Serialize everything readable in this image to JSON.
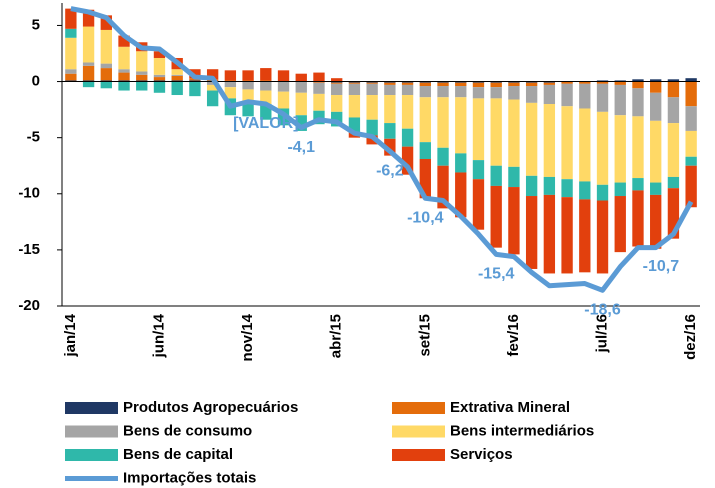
{
  "chart_data": {
    "type": "bar",
    "stacked": true,
    "categories": [
      "jan/14",
      null,
      null,
      null,
      null,
      "jun/14",
      null,
      null,
      null,
      null,
      "nov/14",
      null,
      null,
      null,
      null,
      "abr/15",
      null,
      null,
      null,
      null,
      "set/15",
      null,
      null,
      null,
      null,
      "fev/16",
      null,
      null,
      null,
      null,
      "jul/16",
      null,
      null,
      null,
      null,
      "dez/16"
    ],
    "series": [
      {
        "name": "Produtos Agropecuários",
        "color": "#1f3864",
        "values": [
          0.1,
          0.1,
          0.1,
          0.1,
          0.1,
          0.1,
          0.1,
          0.1,
          0.0,
          0.0,
          0.0,
          0.0,
          0.0,
          0.0,
          0.0,
          -0.1,
          -0.1,
          -0.1,
          -0.1,
          -0.1,
          -0.1,
          -0.1,
          -0.1,
          -0.1,
          -0.1,
          -0.1,
          -0.1,
          -0.1,
          0.0,
          0.0,
          0.1,
          0.1,
          0.2,
          0.2,
          0.2,
          0.3
        ]
      },
      {
        "name": "Extrativa Mineral",
        "color": "#e46c0a",
        "values": [
          0.6,
          1.3,
          1.1,
          0.7,
          0.5,
          0.3,
          0.4,
          0.2,
          0.2,
          0.1,
          0.1,
          0.1,
          0.0,
          0.0,
          -0.1,
          -0.1,
          -0.1,
          -0.1,
          -0.2,
          -0.2,
          -0.3,
          -0.3,
          -0.3,
          -0.4,
          -0.4,
          -0.3,
          -0.3,
          -0.2,
          -0.2,
          -0.2,
          -0.2,
          -0.3,
          -0.6,
          -1.0,
          -1.4,
          -2.2
        ]
      },
      {
        "name": "Bens de consumo",
        "color": "#a5a5a5",
        "values": [
          0.4,
          0.3,
          0.4,
          0.3,
          0.3,
          0.2,
          0.1,
          0.0,
          -0.3,
          -0.5,
          -0.7,
          -0.8,
          -0.9,
          -1.0,
          -1.0,
          -1.0,
          -1.0,
          -1.0,
          -0.9,
          -0.9,
          -1.0,
          -1.0,
          -1.0,
          -1.0,
          -1.0,
          -1.2,
          -1.5,
          -1.7,
          -2.0,
          -2.2,
          -2.5,
          -2.7,
          -2.5,
          -2.5,
          -2.3,
          -2.2
        ]
      },
      {
        "name": "Bens intermediários",
        "color": "#ffd966",
        "values": [
          2.8,
          3.2,
          3.0,
          2.0,
          1.8,
          1.5,
          0.5,
          0.0,
          -0.5,
          -1.0,
          -1.0,
          -1.2,
          -1.5,
          -2.0,
          -1.5,
          -1.5,
          -2.0,
          -2.2,
          -2.5,
          -3.0,
          -4.0,
          -4.5,
          -5.0,
          -5.5,
          -6.0,
          -6.0,
          -6.5,
          -6.5,
          -6.5,
          -6.5,
          -6.5,
          -6.0,
          -5.5,
          -5.5,
          -4.8,
          -2.3
        ]
      },
      {
        "name": "Bens de capital",
        "color": "#2fb8aa",
        "values": [
          0.8,
          -0.5,
          -0.6,
          -0.8,
          -0.8,
          -1.0,
          -1.2,
          -1.3,
          -1.4,
          -1.5,
          -1.4,
          -1.4,
          -1.5,
          -1.4,
          -1.2,
          -1.3,
          -1.3,
          -1.4,
          -1.4,
          -1.6,
          -1.5,
          -1.6,
          -1.7,
          -1.7,
          -1.8,
          -1.8,
          -1.8,
          -1.6,
          -1.6,
          -1.6,
          -1.4,
          -1.2,
          -1.1,
          -1.1,
          -1.0,
          -0.8
        ]
      },
      {
        "name": "Serviços",
        "color": "#e2400d",
        "values": [
          1.8,
          1.5,
          1.3,
          1.0,
          0.8,
          0.6,
          1.0,
          0.8,
          0.9,
          0.9,
          0.9,
          1.1,
          1.0,
          0.7,
          0.8,
          0.3,
          -0.5,
          -0.8,
          -1.5,
          -2.5,
          -3.5,
          -3.8,
          -4.0,
          -4.5,
          -5.5,
          -6.0,
          -6.5,
          -7.0,
          -6.8,
          -6.5,
          -6.5,
          -5.0,
          -5.0,
          -4.8,
          -4.5,
          -3.7
        ]
      },
      {
        "name": "Importações totais",
        "type": "line",
        "color": "#5b9bd5",
        "values": [
          6.5,
          6.2,
          5.7,
          4.1,
          3.0,
          2.9,
          1.7,
          0.4,
          0.3,
          -2.2,
          -1.8,
          -2.0,
          -2.9,
          -4.1,
          -3.4,
          -3.6,
          -4.6,
          -4.9,
          -6.2,
          -7.6,
          -10.4,
          -10.6,
          -12.0,
          -13.6,
          -15.4,
          -15.6,
          -17.0,
          -18.2,
          -18.1,
          -18.0,
          -18.6,
          -16.5,
          -14.8,
          -14.8,
          -13.6,
          -10.7
        ],
        "value_labels": [
          null,
          null,
          null,
          null,
          null,
          null,
          null,
          null,
          null,
          null,
          null,
          "[VALOR]",
          null,
          "-4,1",
          null,
          null,
          null,
          null,
          "-6,2",
          null,
          "-10,4",
          null,
          null,
          null,
          "-15,4",
          null,
          null,
          null,
          null,
          null,
          "-18,6",
          null,
          null,
          null,
          null,
          "-10,7"
        ]
      }
    ],
    "ylim": [
      -20,
      7
    ],
    "yticks": [
      -20,
      -15,
      -10,
      -5,
      0,
      5
    ],
    "legend": "bottom"
  }
}
